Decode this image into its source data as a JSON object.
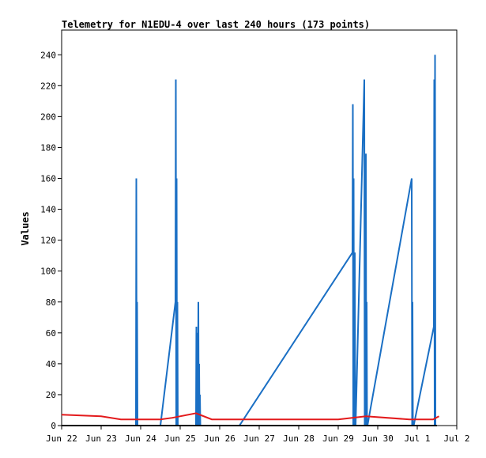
{
  "chart_data": {
    "type": "line",
    "title": "Telemetry for N1EDU-4 over last 240 hours (173 points)",
    "ylabel": "Values",
    "xlabel": "",
    "ylim": [
      0,
      256
    ],
    "yticks": [
      0,
      20,
      40,
      60,
      80,
      100,
      120,
      140,
      160,
      180,
      200,
      220,
      240
    ],
    "xlim": [
      0,
      10
    ],
    "xticks": [
      {
        "x": 0,
        "label": "Jun 22"
      },
      {
        "x": 1,
        "label": "Jun 23"
      },
      {
        "x": 2,
        "label": "Jun 24"
      },
      {
        "x": 3,
        "label": "Jun 25"
      },
      {
        "x": 4,
        "label": "Jun 26"
      },
      {
        "x": 5,
        "label": "Jun 27"
      },
      {
        "x": 6,
        "label": "Jun 28"
      },
      {
        "x": 7,
        "label": "Jun 29"
      },
      {
        "x": 8,
        "label": "Jun 30"
      },
      {
        "x": 9,
        "label": "Jul 1"
      },
      {
        "x": 10,
        "label": "Jul 2"
      }
    ],
    "grid": false,
    "legend": "none",
    "series": [
      {
        "color": "#1a6fc4",
        "x": [
          1.88,
          1.89,
          1.9,
          1.91,
          1.92,
          1.93,
          2.5,
          2.88,
          2.89,
          2.9,
          2.91,
          2.92,
          2.93,
          2.94,
          2.95,
          3.4,
          3.41,
          3.42,
          3.43,
          3.44,
          3.45,
          3.46,
          3.47,
          3.48,
          3.49,
          3.5,
          3.51,
          4.5,
          7.36,
          7.37,
          7.38,
          7.39,
          7.4,
          7.41,
          7.42,
          7.43,
          7.44,
          7.66,
          7.67,
          7.68,
          7.69,
          7.7,
          7.71,
          7.72,
          7.73,
          7.74,
          8.86,
          8.87,
          8.88,
          8.89,
          8.9,
          8.91,
          9.42,
          9.43,
          9.44,
          9.45,
          9.46,
          9.47
        ],
        "y": [
          0,
          160,
          0,
          80,
          0,
          0,
          0,
          80,
          224,
          0,
          160,
          0,
          80,
          0,
          0,
          0,
          64,
          0,
          32,
          60,
          0,
          80,
          0,
          40,
          0,
          20,
          0,
          0,
          112,
          208,
          0,
          160,
          0,
          80,
          112,
          0,
          0,
          224,
          0,
          80,
          0,
          176,
          0,
          80,
          0,
          0,
          160,
          0,
          80,
          0,
          0,
          0,
          64,
          224,
          0,
          240,
          0,
          0
        ]
      },
      {
        "color": "#e31a1c",
        "x": [
          0,
          1,
          1.5,
          2.5,
          2.8,
          3.4,
          3.8,
          7.0,
          7.7,
          8.8,
          9.4,
          9.55
        ],
        "y": [
          7,
          6,
          4,
          4,
          5,
          8,
          4,
          4,
          6,
          4,
          4,
          6
        ]
      },
      {
        "color": "#000000",
        "x": [
          0,
          9.5
        ],
        "y": [
          0,
          0
        ]
      }
    ]
  }
}
